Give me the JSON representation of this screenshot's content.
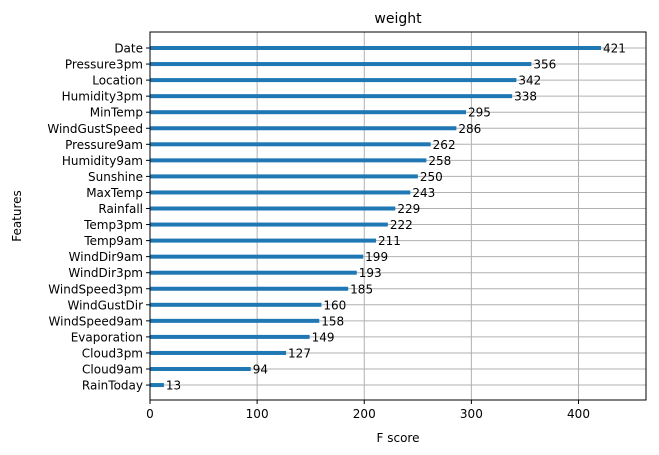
{
  "chart_data": {
    "type": "bar",
    "orientation": "horizontal",
    "title": "weight",
    "xlabel": "F score",
    "ylabel": "Features",
    "xlim": [
      0,
      463
    ],
    "xticks": [
      0,
      100,
      200,
      300,
      400
    ],
    "grid": true,
    "bar_color": "#1f77b4",
    "categories": [
      "Date",
      "Pressure3pm",
      "Location",
      "Humidity3pm",
      "MinTemp",
      "WindGustSpeed",
      "Pressure9am",
      "Humidity9am",
      "Sunshine",
      "MaxTemp",
      "Rainfall",
      "Temp3pm",
      "Temp9am",
      "WindDir9am",
      "WindDir3pm",
      "WindSpeed3pm",
      "WindGustDir",
      "WindSpeed9am",
      "Evaporation",
      "Cloud3pm",
      "Cloud9am",
      "RainToday"
    ],
    "values": [
      421,
      356,
      342,
      338,
      295,
      286,
      262,
      258,
      250,
      243,
      229,
      222,
      211,
      199,
      193,
      185,
      160,
      158,
      149,
      127,
      94,
      13
    ]
  }
}
